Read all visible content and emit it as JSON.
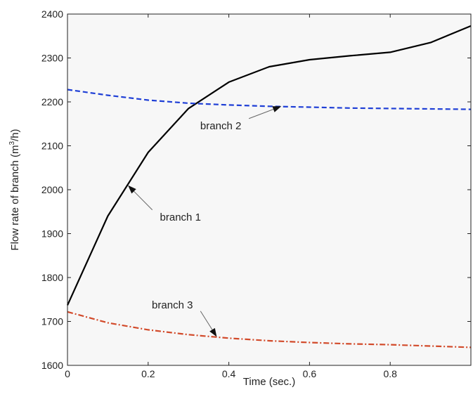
{
  "chart_data": {
    "type": "line",
    "title": "",
    "xlabel": "Time (sec.)",
    "ylabel_prefix": "Flow rate of branch (m",
    "ylabel_sup": "3",
    "ylabel_suffix": "/h)",
    "xlim": [
      0,
      1
    ],
    "ylim": [
      1600,
      2400
    ],
    "xticks": [
      0,
      0.2,
      0.4,
      0.6,
      0.8
    ],
    "xtick_labels": [
      "0",
      "0.2",
      "0.4",
      "0.6",
      "0.8"
    ],
    "yticks": [
      1600,
      1700,
      1800,
      1900,
      2000,
      2100,
      2200,
      2300,
      2400
    ],
    "ytick_labels": [
      "1600",
      "1700",
      "1800",
      "1900",
      "2000",
      "2100",
      "2200",
      "2300",
      "2400"
    ],
    "grid": false,
    "background_color": "#f7f7f7",
    "series": [
      {
        "name": "branch 1",
        "color": "#000000",
        "style": "solid",
        "x": [
          0,
          0.1,
          0.2,
          0.3,
          0.4,
          0.5,
          0.6,
          0.7,
          0.8,
          0.9,
          1.0
        ],
        "y": [
          1737,
          1940,
          2085,
          2185,
          2245,
          2280,
          2296,
          2305,
          2313,
          2335,
          2373
        ]
      },
      {
        "name": "branch 2",
        "color": "#1f3fd6",
        "style": "dashed",
        "x": [
          0,
          0.1,
          0.2,
          0.3,
          0.4,
          0.5,
          0.6,
          0.7,
          0.8,
          0.9,
          1.0
        ],
        "y": [
          2228,
          2215,
          2204,
          2197,
          2193,
          2190,
          2188,
          2186,
          2185,
          2184,
          2183
        ]
      },
      {
        "name": "branch 3",
        "color": "#d24a2a",
        "style": "dashdot",
        "x": [
          0,
          0.1,
          0.2,
          0.3,
          0.4,
          0.5,
          0.6,
          0.7,
          0.8,
          0.9,
          1.0
        ],
        "y": [
          1722,
          1697,
          1681,
          1670,
          1662,
          1656,
          1652,
          1649,
          1647,
          1644,
          1641
        ]
      }
    ],
    "annotations": [
      {
        "text": "branch 1",
        "target_x": 0.15,
        "target_y": 2010,
        "text_x": 0.28,
        "text_y": 1930
      },
      {
        "text": "branch 2",
        "target_x": 0.53,
        "target_y": 2190,
        "text_x": 0.38,
        "text_y": 2138
      },
      {
        "text": "branch 3",
        "target_x": 0.37,
        "target_y": 1665,
        "text_x": 0.26,
        "text_y": 1730
      }
    ]
  }
}
